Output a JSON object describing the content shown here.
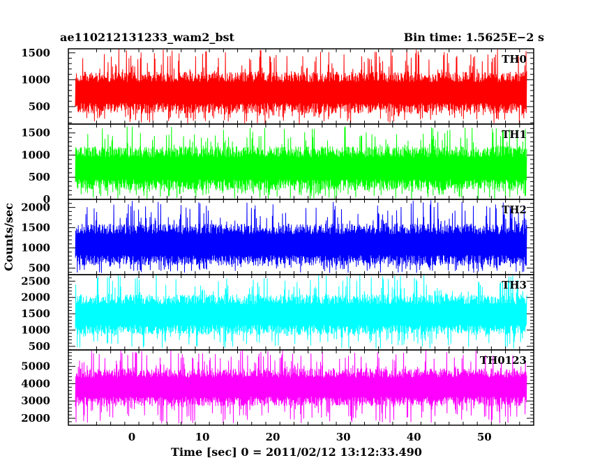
{
  "header": {
    "title": "ae110212131233_wam2_bst",
    "bin_time": "Bin time: 1.5625E−2 s"
  },
  "chart_data": {
    "type": "line",
    "xlabel": "Time [sec] 0 = 2011/02/12 13:12:33.490",
    "ylabel": "Counts/sec",
    "xlim": [
      -9,
      57
    ],
    "x_data_range": [
      -8,
      56
    ],
    "x_ticks": [
      0,
      10,
      20,
      30,
      40,
      50
    ],
    "panels": [
      {
        "name": "TH0",
        "color": "#ff0000",
        "ylim": [
          175,
          1575
        ],
        "y_ticks": [
          500,
          1000,
          1500
        ],
        "level_typical": [
          370,
          1150
        ],
        "level_extreme": [
          180,
          1575
        ]
      },
      {
        "name": "TH1",
        "color": "#00ff00",
        "ylim": [
          0,
          1700
        ],
        "y_ticks": [
          0,
          500,
          1000,
          1500
        ],
        "level_typical": [
          200,
          1200
        ],
        "level_extreme": [
          0,
          1650
        ]
      },
      {
        "name": "TH2",
        "color": "#0000ff",
        "ylim": [
          340,
          2200
        ],
        "y_ticks": [
          500,
          1000,
          1500,
          2000
        ],
        "level_typical": [
          560,
          1600
        ],
        "level_extreme": [
          380,
          2180
        ]
      },
      {
        "name": "TH3",
        "color": "#00ffff",
        "ylim": [
          390,
          2700
        ],
        "y_ticks": [
          500,
          1000,
          1500,
          2000,
          2500
        ],
        "level_typical": [
          850,
          2100
        ],
        "level_extreme": [
          430,
          2700
        ]
      },
      {
        "name": "TH0123",
        "color": "#ff00ff",
        "ylim": [
          1600,
          5950
        ],
        "y_ticks": [
          2000,
          3000,
          4000,
          5000
        ],
        "level_typical": [
          2700,
          4900
        ],
        "level_extreme": [
          1700,
          5950
        ]
      }
    ]
  }
}
